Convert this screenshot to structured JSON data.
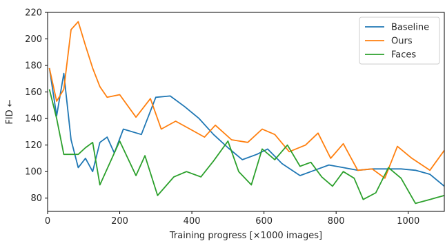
{
  "chart_data": {
    "type": "line",
    "title": "",
    "xlabel": "Training progress [×1000 images]",
    "ylabel": "FID ←",
    "xlim": [
      0,
      1100
    ],
    "ylim": [
      70,
      220
    ],
    "xticks": [
      0,
      200,
      400,
      600,
      800,
      1000
    ],
    "yticks": [
      80,
      100,
      120,
      140,
      160,
      180,
      200,
      220
    ],
    "grid": false,
    "legend": "top-right",
    "series": [
      {
        "name": "Baseline",
        "color": "#1f77b4",
        "x": [
          5,
          25,
          45,
          65,
          85,
          105,
          125,
          145,
          165,
          185,
          210,
          260,
          300,
          340,
          380,
          420,
          460,
          500,
          540,
          580,
          610,
          650,
          700,
          740,
          780,
          820,
          860,
          900,
          940,
          980,
          1020,
          1060,
          1100
        ],
        "y": [
          178,
          142,
          174,
          124,
          103,
          110,
          100,
          122,
          126,
          114,
          132,
          128,
          156,
          157,
          149,
          140,
          128,
          118,
          109,
          113,
          117,
          106,
          97,
          101,
          105,
          103,
          101,
          102,
          102,
          102,
          101,
          98,
          89
        ]
      },
      {
        "name": "Ours",
        "color": "#ff7f0e",
        "x": [
          5,
          25,
          45,
          65,
          85,
          105,
          125,
          145,
          165,
          200,
          245,
          285,
          315,
          355,
          395,
          435,
          465,
          510,
          555,
          595,
          630,
          670,
          715,
          750,
          785,
          820,
          860,
          900,
          935,
          970,
          1010,
          1060,
          1100
        ],
        "y": [
          178,
          153,
          162,
          207,
          213,
          195,
          178,
          164,
          156,
          158,
          141,
          155,
          132,
          138,
          132,
          126,
          135,
          124,
          122,
          132,
          128,
          115,
          120,
          129,
          110,
          121,
          101,
          102,
          95,
          119,
          110,
          101,
          116
        ]
      },
      {
        "name": "Faces",
        "color": "#2ca02c",
        "x": [
          5,
          25,
          45,
          65,
          85,
          105,
          125,
          145,
          165,
          200,
          245,
          270,
          305,
          350,
          385,
          425,
          460,
          500,
          530,
          565,
          595,
          630,
          665,
          700,
          730,
          760,
          790,
          820,
          850,
          875,
          910,
          945,
          980,
          1020,
          1060,
          1100
        ],
        "y": [
          162,
          140,
          113,
          113,
          113,
          118,
          122,
          90,
          102,
          123,
          97,
          112,
          82,
          96,
          100,
          96,
          108,
          123,
          100,
          90,
          117,
          109,
          120,
          104,
          107,
          96,
          89,
          100,
          95,
          79,
          84,
          103,
          95,
          76,
          79,
          82
        ]
      }
    ]
  }
}
